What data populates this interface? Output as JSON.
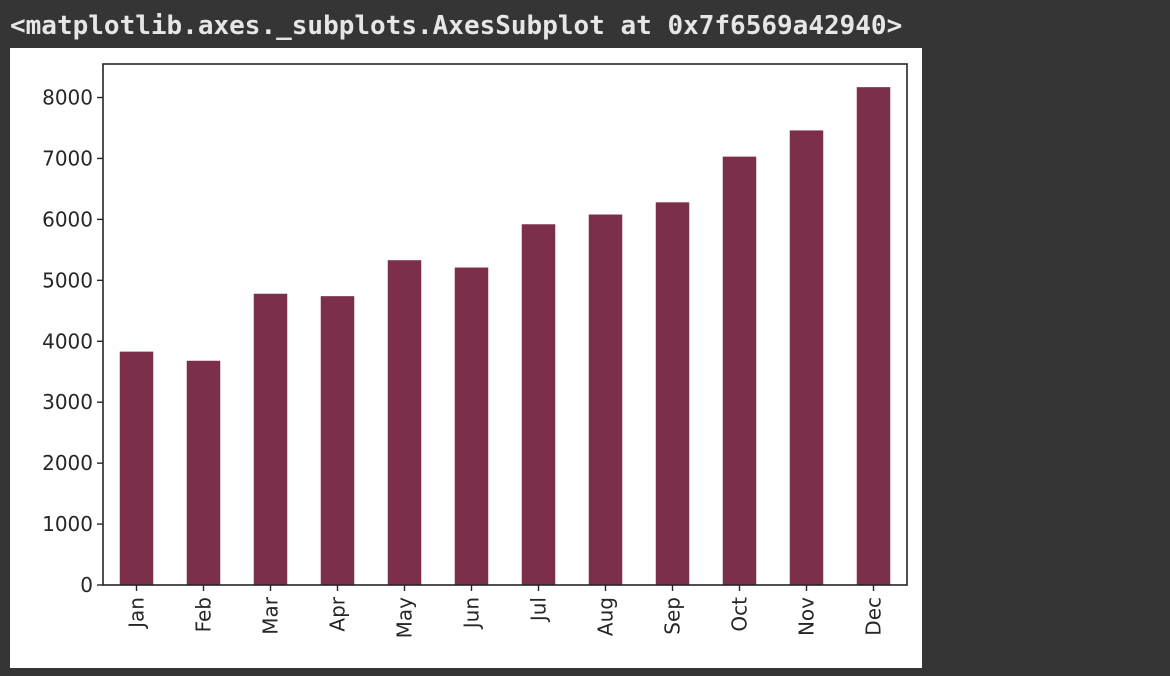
{
  "output": {
    "repr": "<matplotlib.axes._subplots.AxesSubplot at 0x7f6569a42940>"
  },
  "colors": {
    "bar": "#7b2f4a",
    "background": "#353535",
    "axes_frame": "#262626"
  },
  "chart_data": {
    "type": "bar",
    "title": "",
    "xlabel": "",
    "ylabel": "",
    "categories": [
      "Jan",
      "Feb",
      "Mar",
      "Apr",
      "May",
      "Jun",
      "Jul",
      "Aug",
      "Sep",
      "Oct",
      "Nov",
      "Dec"
    ],
    "values": [
      3830,
      3680,
      4780,
      4740,
      5330,
      5210,
      5920,
      6080,
      6280,
      7030,
      7460,
      8170
    ],
    "ylim": [
      0,
      8550
    ],
    "yticks": [
      0,
      1000,
      2000,
      3000,
      4000,
      5000,
      6000,
      7000,
      8000
    ],
    "grid": false,
    "legend": false
  }
}
